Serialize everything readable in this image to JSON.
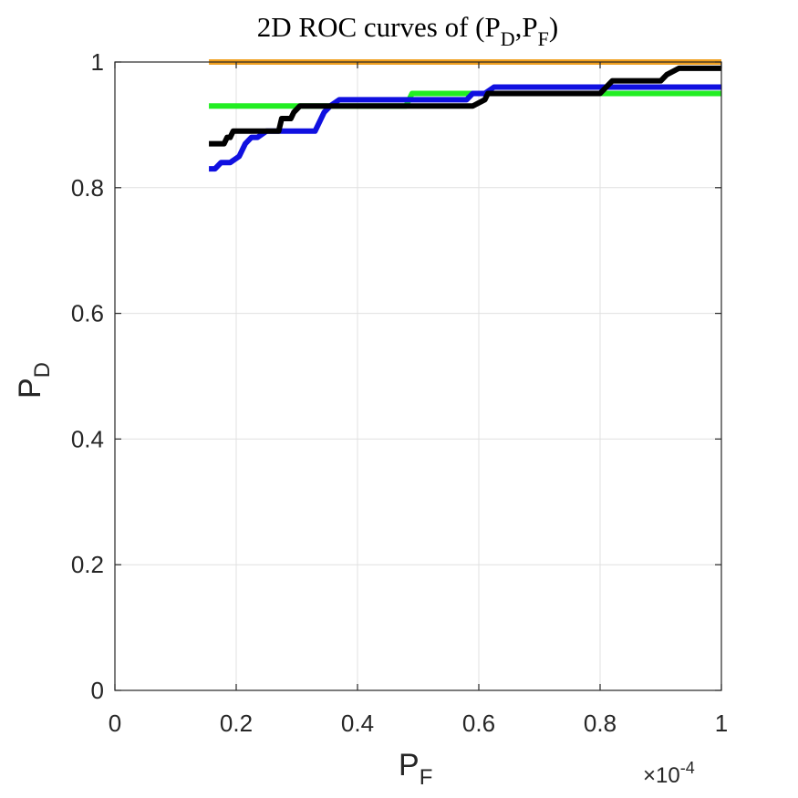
{
  "chart_data": {
    "type": "line",
    "title": {
      "prefix": "2D ROC curves of (P",
      "sub1": "D",
      "mid": ",P",
      "sub2": "F",
      "suffix": ")"
    },
    "xlabel": {
      "main": "P",
      "sub": "F"
    },
    "ylabel": {
      "main": "P",
      "sub": "D"
    },
    "x_exponent": {
      "prefix": "×10",
      "sup": "-4"
    },
    "xlim": [
      0,
      1
    ],
    "ylim": [
      0,
      1
    ],
    "xticks": [
      "0",
      "0.2",
      "0.4",
      "0.6",
      "0.8",
      "1"
    ],
    "yticks": [
      "0",
      "0.2",
      "0.4",
      "0.6",
      "0.8",
      "1"
    ],
    "grid": true,
    "colors": {
      "axes": "#262626",
      "grid": "#e0e0e0",
      "series_orange": "#f0a020",
      "series_green": "#22ee22",
      "series_blue": "#1010e0",
      "series_black": "#000000"
    },
    "series": [
      {
        "name": "orange",
        "color": "#f0a020",
        "x": [
          0.155,
          1.0
        ],
        "y": [
          1.0,
          1.0
        ]
      },
      {
        "name": "green",
        "color": "#22ee22",
        "x": [
          0.155,
          0.3,
          0.31,
          0.48,
          0.49,
          0.79,
          0.8,
          1.0
        ],
        "y": [
          0.93,
          0.93,
          0.93,
          0.93,
          0.95,
          0.95,
          0.95,
          0.95
        ],
        "step": false
      },
      {
        "name": "blue",
        "color": "#1010e0",
        "x": [
          0.155,
          0.165,
          0.175,
          0.19,
          0.205,
          0.215,
          0.225,
          0.235,
          0.25,
          0.28,
          0.33,
          0.345,
          0.355,
          0.37,
          0.58,
          0.59,
          0.61,
          0.625,
          0.63,
          1.0
        ],
        "y": [
          0.83,
          0.83,
          0.84,
          0.84,
          0.85,
          0.87,
          0.88,
          0.88,
          0.89,
          0.89,
          0.89,
          0.92,
          0.93,
          0.94,
          0.94,
          0.95,
          0.95,
          0.96,
          0.96,
          0.96
        ],
        "step": false
      },
      {
        "name": "black",
        "color": "#000000",
        "x": [
          0.155,
          0.18,
          0.185,
          0.19,
          0.195,
          0.2,
          0.27,
          0.275,
          0.29,
          0.295,
          0.305,
          0.58,
          0.59,
          0.61,
          0.615,
          0.8,
          0.81,
          0.82,
          0.9,
          0.91,
          0.93,
          1.0
        ],
        "y": [
          0.87,
          0.87,
          0.88,
          0.88,
          0.89,
          0.89,
          0.89,
          0.91,
          0.91,
          0.92,
          0.93,
          0.93,
          0.93,
          0.94,
          0.95,
          0.95,
          0.96,
          0.97,
          0.97,
          0.98,
          0.99,
          0.99
        ],
        "step": false
      }
    ]
  }
}
